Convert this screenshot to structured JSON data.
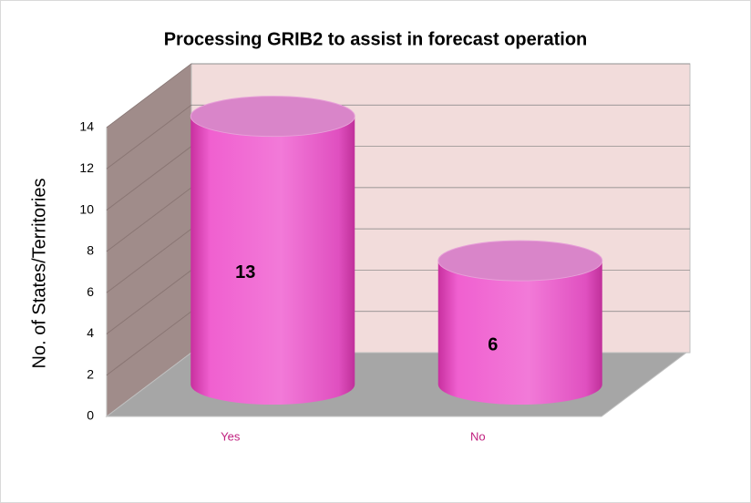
{
  "chart_data": {
    "type": "bar",
    "title": "Processing GRIB2 to assist in forecast operation",
    "y_label": "No. of States/Territories",
    "categories": [
      "Yes",
      "No"
    ],
    "values": [
      13,
      6
    ],
    "color": "#e84fc4",
    "ylim": [
      0,
      14
    ],
    "yticks": [
      0,
      2,
      4,
      6,
      8,
      10,
      12,
      14
    ],
    "grid": true
  }
}
